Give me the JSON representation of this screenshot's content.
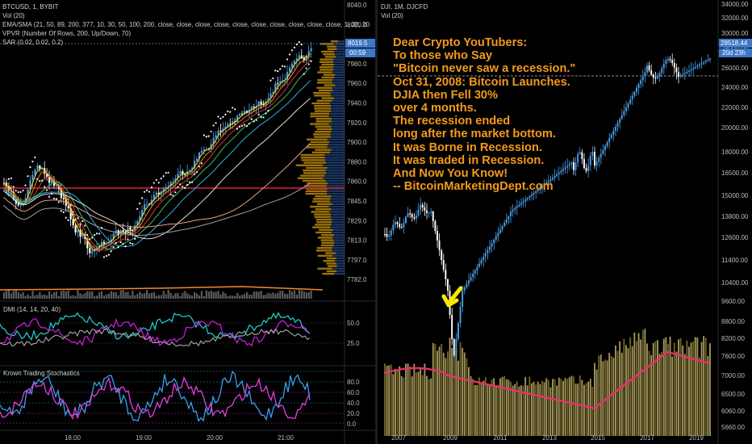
{
  "colors": {
    "background": "#000000",
    "up_candle": "#4a9fe8",
    "down_candle": "#ffffff",
    "annotation": "#f39a1c",
    "arrow": "#ffe600",
    "price_tag": "#3d78c7",
    "volume_profile": "#b8860b",
    "ma_line": "#e8306a",
    "dmi_plus": "#1ec8c8",
    "dmi_minus": "#c21fd2",
    "stoch_k": "#3aa0e8",
    "stoch_d": "#e040e0"
  },
  "left_chart": {
    "symbol_line": "BTCUSD, 1, BYBIT",
    "legend_lines": [
      "Vol (20)",
      "EMA/SMA (21, 50, 89, 200, 377, 10, 30, 50, 100, 200, close, close, close, close, close, close, close, close, close, close, 1, 30, 20",
      "VPVR (Number Of Rows, 200, Up/Down, 70)",
      "SAR (0.02, 0.02, 0.2)"
    ],
    "price_ticks": [
      "8040.0",
      "8020.0",
      "8000.0",
      "7980.0",
      "7960.0",
      "7940.0",
      "7920.0",
      "7900.0",
      "7880.0",
      "7860.0",
      "7845.0",
      "7829.0",
      "7813.0",
      "7797.0",
      "7782.0"
    ],
    "price_tag": "8019.5",
    "timer_tag": "00:59",
    "time_ticks": [
      "18:00",
      "19:00",
      "20:00",
      "21:00"
    ],
    "dmi_label": "DMI (14, 14, 20, 40)",
    "dmi_ticks": [
      "50.0",
      "25.0"
    ],
    "stoch_label": "Krown Trading Stochastics",
    "stoch_ticks": [
      "80.0",
      "60.0",
      "40.0",
      "20.0",
      "0.0"
    ]
  },
  "right_chart": {
    "symbol_line": "DJI, 1M, DJCFD",
    "legend_lines": [
      "Vol (20)"
    ],
    "price_ticks": [
      "34000.00",
      "32000.00",
      "30000.00",
      "28000.00",
      "26000.00",
      "24000.00",
      "22000.00",
      "20000.00",
      "18000.00",
      "16500.00",
      "15000.00",
      "13800.00",
      "12600.00",
      "11400.00",
      "10400.00",
      "9600.00",
      "8800.00",
      "8200.00",
      "7600.00",
      "7000.00",
      "6500.00",
      "6060.00",
      "5660.00"
    ],
    "price_tag": "28518.44",
    "timer_tag": "20d 23h",
    "time_ticks": [
      "2007",
      "2009",
      "2011",
      "2013",
      "2015",
      "2017",
      "2019"
    ]
  },
  "annotation": {
    "lines": [
      "Dear Crypto YouTubers:",
      "To those who Say",
      "\"Bitcoin never saw a recession.\"",
      "Oct 31, 2008: Bitcoin Launches.",
      "DJIA then Fell 30%",
      "over 4 months.",
      "The recession ended",
      "long after the market bottom.",
      "It was Borne in Recession.",
      "It was traded in Recession.",
      "And Now You Know!",
      "-- BitcoinMarketingDept.com"
    ]
  }
}
